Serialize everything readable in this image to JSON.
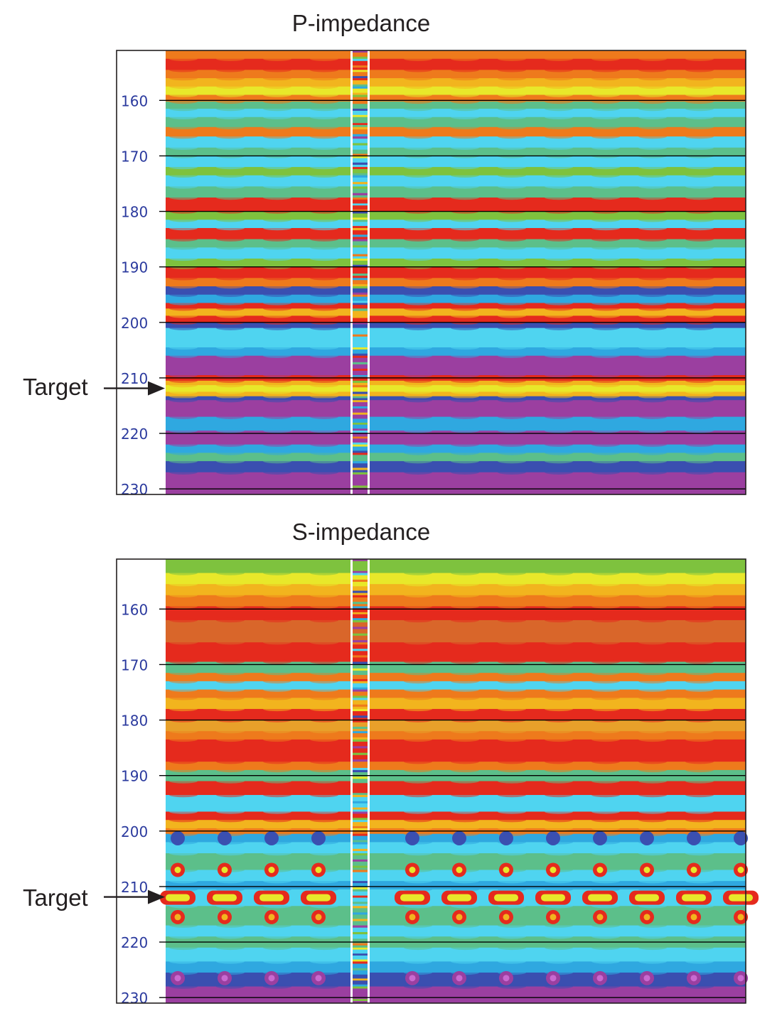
{
  "chart_data": [
    {
      "type": "heatmap",
      "title": "P-impedance",
      "ylabel": "",
      "xlabel": "",
      "y_range": [
        151,
        231
      ],
      "y_ticks": [
        160,
        170,
        180,
        190,
        200,
        210,
        220,
        230
      ],
      "horizontal_lines_at": [
        160,
        170,
        180,
        190,
        200,
        210,
        220,
        230
      ],
      "annotation": {
        "text": "Target",
        "arrow_to_y": 212
      },
      "well_log_column": "inserted narrow vertical strip near center",
      "colormap": [
        "#9b3fa0",
        "#3a4fb0",
        "#2fa8e0",
        "#4fd4f0",
        "#5cbf8a",
        "#7ec23e",
        "#e8e82a",
        "#f2b41e",
        "#ee7a1c",
        "#e52a1d"
      ],
      "layers": [
        {
          "top": 151.0,
          "bottom": 152.5,
          "color": "#ee7a1c"
        },
        {
          "top": 152.5,
          "bottom": 154.5,
          "color": "#e52a1d"
        },
        {
          "top": 154.5,
          "bottom": 156.0,
          "color": "#ee7a1c"
        },
        {
          "top": 156.0,
          "bottom": 157.5,
          "color": "#f2b41e"
        },
        {
          "top": 157.5,
          "bottom": 159.0,
          "color": "#e8e82a"
        },
        {
          "top": 159.0,
          "bottom": 160.2,
          "color": "#ee7a1c"
        },
        {
          "top": 160.2,
          "bottom": 161.5,
          "color": "#5cbf8a"
        },
        {
          "top": 161.5,
          "bottom": 163.0,
          "color": "#4fd4f0"
        },
        {
          "top": 163.0,
          "bottom": 164.8,
          "color": "#5cbf8a"
        },
        {
          "top": 164.8,
          "bottom": 166.5,
          "color": "#ee7a1c"
        },
        {
          "top": 166.5,
          "bottom": 168.5,
          "color": "#4fd4f0"
        },
        {
          "top": 168.5,
          "bottom": 170.0,
          "color": "#5cbf8a"
        },
        {
          "top": 170.0,
          "bottom": 172.0,
          "color": "#4fd4f0"
        },
        {
          "top": 172.0,
          "bottom": 173.5,
          "color": "#7ec23e"
        },
        {
          "top": 173.5,
          "bottom": 175.5,
          "color": "#4fd4f0"
        },
        {
          "top": 175.5,
          "bottom": 177.5,
          "color": "#5cbf8a"
        },
        {
          "top": 177.5,
          "bottom": 180.0,
          "color": "#e52a1d"
        },
        {
          "top": 180.0,
          "bottom": 181.5,
          "color": "#7ec23e"
        },
        {
          "top": 181.5,
          "bottom": 183.0,
          "color": "#4fd4f0"
        },
        {
          "top": 183.0,
          "bottom": 185.0,
          "color": "#e52a1d"
        },
        {
          "top": 185.0,
          "bottom": 186.5,
          "color": "#5cbf8a"
        },
        {
          "top": 186.5,
          "bottom": 188.5,
          "color": "#4fd4f0"
        },
        {
          "top": 188.5,
          "bottom": 190.0,
          "color": "#7ec23e"
        },
        {
          "top": 190.0,
          "bottom": 192.0,
          "color": "#e52a1d"
        },
        {
          "top": 192.0,
          "bottom": 193.5,
          "color": "#ee7a1c"
        },
        {
          "top": 193.5,
          "bottom": 195.0,
          "color": "#3a4fb0"
        },
        {
          "top": 195.0,
          "bottom": 196.5,
          "color": "#2fa8e0"
        },
        {
          "top": 196.5,
          "bottom": 197.5,
          "color": "#e52a1d"
        },
        {
          "top": 197.5,
          "bottom": 198.8,
          "color": "#f2b41e"
        },
        {
          "top": 198.8,
          "bottom": 200.0,
          "color": "#e52a1d"
        },
        {
          "top": 200.0,
          "bottom": 201.0,
          "color": "#3a4fb0"
        },
        {
          "top": 201.0,
          "bottom": 204.5,
          "color": "#4fd4f0"
        },
        {
          "top": 204.5,
          "bottom": 206.0,
          "color": "#2fa8e0"
        },
        {
          "top": 206.0,
          "bottom": 209.5,
          "color": "#9b3fa0"
        },
        {
          "top": 209.5,
          "bottom": 210.5,
          "color": "#e52a1d"
        },
        {
          "top": 210.5,
          "bottom": 211.3,
          "color": "#f2b41e"
        },
        {
          "top": 211.3,
          "bottom": 212.5,
          "color": "#e8e82a"
        },
        {
          "top": 212.5,
          "bottom": 213.3,
          "color": "#f2b41e"
        },
        {
          "top": 213.3,
          "bottom": 214.0,
          "color": "#3a4fb0"
        },
        {
          "top": 214.0,
          "bottom": 217.0,
          "color": "#9b3fa0"
        },
        {
          "top": 217.0,
          "bottom": 219.5,
          "color": "#2fa8e0"
        },
        {
          "top": 219.5,
          "bottom": 222.0,
          "color": "#9b3fa0"
        },
        {
          "top": 222.0,
          "bottom": 223.5,
          "color": "#2fa8e0"
        },
        {
          "top": 223.5,
          "bottom": 225.0,
          "color": "#5cbf8a"
        },
        {
          "top": 225.0,
          "bottom": 227.0,
          "color": "#3a4fb0"
        },
        {
          "top": 227.0,
          "bottom": 231.0,
          "color": "#9b3fa0"
        }
      ]
    },
    {
      "type": "heatmap",
      "title": "S-impedance",
      "ylabel": "",
      "xlabel": "",
      "y_range": [
        151,
        231
      ],
      "y_ticks": [
        160,
        170,
        180,
        190,
        200,
        210,
        220,
        230
      ],
      "horizontal_lines_at": [
        160,
        170,
        180,
        190,
        200,
        210,
        220,
        230
      ],
      "annotation": {
        "text": "Target",
        "arrow_to_y": 212
      },
      "well_log_column": "inserted narrow vertical strip near center",
      "colormap": [
        "#9b3fa0",
        "#3a4fb0",
        "#2fa8e0",
        "#4fd4f0",
        "#5cbf8a",
        "#7ec23e",
        "#e8e82a",
        "#f2b41e",
        "#ee7a1c",
        "#e52a1d"
      ],
      "layers": [
        {
          "top": 151.0,
          "bottom": 153.5,
          "color": "#7ec23e"
        },
        {
          "top": 153.5,
          "bottom": 155.5,
          "color": "#e8e82a"
        },
        {
          "top": 155.5,
          "bottom": 157.5,
          "color": "#f2b41e"
        },
        {
          "top": 157.5,
          "bottom": 159.5,
          "color": "#ee7a1c"
        },
        {
          "top": 159.5,
          "bottom": 162.0,
          "color": "#e52a1d"
        },
        {
          "top": 162.0,
          "bottom": 166.0,
          "color": "#d9662a"
        },
        {
          "top": 166.0,
          "bottom": 169.5,
          "color": "#e52a1d"
        },
        {
          "top": 169.5,
          "bottom": 171.5,
          "color": "#5cbf8a"
        },
        {
          "top": 171.5,
          "bottom": 173.0,
          "color": "#ee7a1c"
        },
        {
          "top": 173.0,
          "bottom": 174.5,
          "color": "#4fd4f0"
        },
        {
          "top": 174.5,
          "bottom": 176.0,
          "color": "#ee7a1c"
        },
        {
          "top": 176.0,
          "bottom": 178.0,
          "color": "#f2b41e"
        },
        {
          "top": 178.0,
          "bottom": 180.0,
          "color": "#e52a1d"
        },
        {
          "top": 180.0,
          "bottom": 182.0,
          "color": "#e8a02a"
        },
        {
          "top": 182.0,
          "bottom": 183.5,
          "color": "#ee7a1c"
        },
        {
          "top": 183.5,
          "bottom": 187.5,
          "color": "#e52a1d"
        },
        {
          "top": 187.5,
          "bottom": 189.0,
          "color": "#ee7a1c"
        },
        {
          "top": 189.0,
          "bottom": 191.0,
          "color": "#5cbf8a"
        },
        {
          "top": 191.0,
          "bottom": 193.5,
          "color": "#e52a1d"
        },
        {
          "top": 193.5,
          "bottom": 196.5,
          "color": "#4fd4f0"
        },
        {
          "top": 196.5,
          "bottom": 198.0,
          "color": "#e52a1d"
        },
        {
          "top": 198.0,
          "bottom": 199.5,
          "color": "#f2b41e"
        },
        {
          "top": 199.5,
          "bottom": 200.5,
          "color": "#ee7a1c"
        },
        {
          "top": 200.5,
          "bottom": 202.0,
          "color": "#2fa8e0"
        },
        {
          "top": 202.0,
          "bottom": 204.0,
          "color": "#4fd4f0"
        },
        {
          "top": 204.0,
          "bottom": 207.0,
          "color": "#5cbf8a"
        },
        {
          "top": 207.0,
          "bottom": 209.0,
          "color": "#4fd4f0"
        },
        {
          "top": 209.0,
          "bottom": 210.5,
          "color": "#2fa8e0"
        },
        {
          "top": 210.5,
          "bottom": 213.5,
          "color": "#4fd4f0"
        },
        {
          "top": 213.5,
          "bottom": 217.0,
          "color": "#5cbf8a"
        },
        {
          "top": 217.0,
          "bottom": 219.0,
          "color": "#4fd4f0"
        },
        {
          "top": 219.0,
          "bottom": 221.0,
          "color": "#5cbf8a"
        },
        {
          "top": 221.0,
          "bottom": 223.5,
          "color": "#4fd4f0"
        },
        {
          "top": 223.5,
          "bottom": 225.5,
          "color": "#2fa8e0"
        },
        {
          "top": 225.5,
          "bottom": 228.0,
          "color": "#3a4fb0"
        },
        {
          "top": 228.0,
          "bottom": 231.0,
          "color": "#9b3fa0"
        }
      ],
      "features": [
        {
          "kind": "ring",
          "y": 207.0,
          "color": "#e52a1d",
          "inner": "#e8e82a"
        },
        {
          "kind": "capsule",
          "y": 212.0,
          "color": "#e52a1d",
          "inner": "#e8e82a"
        },
        {
          "kind": "ring",
          "y": 215.5,
          "color": "#e52a1d",
          "inner": "#f2b41e"
        },
        {
          "kind": "ring",
          "y": 226.5,
          "color": "#9b3fa0",
          "inner": "#c86ad0"
        },
        {
          "kind": "ring",
          "y": 201.3,
          "color": "#3a4fb0",
          "inner": "#3a4fb0"
        }
      ]
    }
  ]
}
